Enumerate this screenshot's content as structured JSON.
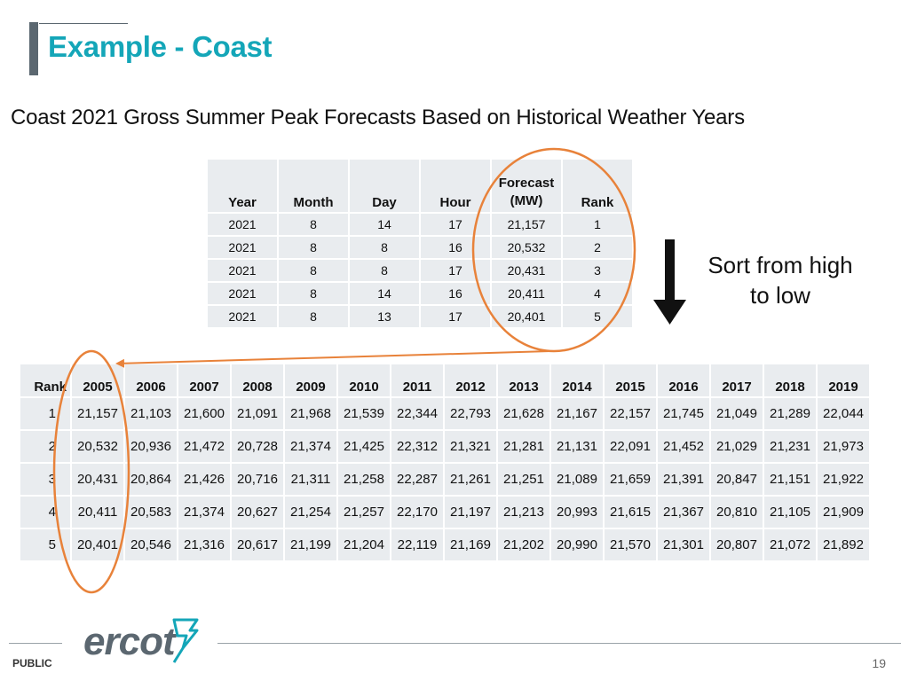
{
  "header": {
    "title": "Example - Coast"
  },
  "subtitle": "Coast 2021 Gross Summer Peak Forecasts Based on Historical Weather Years",
  "forecast_table": {
    "columns": [
      "Year",
      "Month",
      "Day",
      "Hour",
      "Forecast\n(MW)",
      "Rank"
    ],
    "rows": [
      [
        "2021",
        "8",
        "14",
        "17",
        "21,157",
        "1"
      ],
      [
        "2021",
        "8",
        "8",
        "16",
        "20,532",
        "2"
      ],
      [
        "2021",
        "8",
        "8",
        "17",
        "20,431",
        "3"
      ],
      [
        "2021",
        "8",
        "14",
        "16",
        "20,411",
        "4"
      ],
      [
        "2021",
        "8",
        "13",
        "17",
        "20,401",
        "5"
      ]
    ]
  },
  "sort_note": {
    "line1": "Sort from high",
    "line2": "to low"
  },
  "ranking_table": {
    "columns": [
      "Rank",
      "2005",
      "2006",
      "2007",
      "2008",
      "2009",
      "2010",
      "2011",
      "2012",
      "2013",
      "2014",
      "2015",
      "2016",
      "2017",
      "2018",
      "2019"
    ],
    "rows": [
      [
        "1",
        "21,157",
        "21,103",
        "21,600",
        "21,091",
        "21,968",
        "21,539",
        "22,344",
        "22,793",
        "21,628",
        "21,167",
        "22,157",
        "21,745",
        "21,049",
        "21,289",
        "22,044"
      ],
      [
        "2",
        "20,532",
        "20,936",
        "21,472",
        "20,728",
        "21,374",
        "21,425",
        "22,312",
        "21,321",
        "21,281",
        "21,131",
        "22,091",
        "21,452",
        "21,029",
        "21,231",
        "21,973"
      ],
      [
        "3",
        "20,431",
        "20,864",
        "21,426",
        "20,716",
        "21,311",
        "21,258",
        "22,287",
        "21,261",
        "21,251",
        "21,089",
        "21,659",
        "21,391",
        "20,847",
        "21,151",
        "21,922"
      ],
      [
        "4",
        "20,411",
        "20,583",
        "21,374",
        "20,627",
        "21,254",
        "21,257",
        "22,170",
        "21,197",
        "21,213",
        "20,993",
        "21,615",
        "21,367",
        "20,810",
        "21,105",
        "21,909"
      ],
      [
        "5",
        "20,401",
        "20,546",
        "21,316",
        "20,617",
        "21,199",
        "21,204",
        "22,119",
        "21,169",
        "21,202",
        "20,990",
        "21,570",
        "21,301",
        "20,807",
        "21,072",
        "21,892"
      ]
    ]
  },
  "footer": {
    "classification": "PUBLIC",
    "logo_text": "ercot",
    "page_number": "19"
  },
  "colors": {
    "title": "#14a6b8",
    "accent_bar": "#5b6770",
    "highlight": "#e8823a",
    "cell": "#e9ecef"
  }
}
